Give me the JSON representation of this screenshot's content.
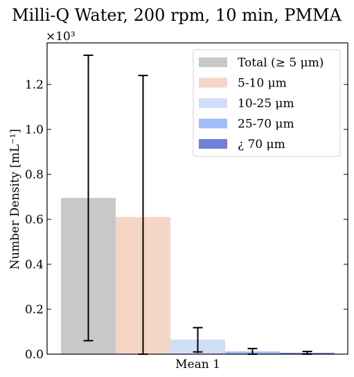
{
  "chart_data": {
    "type": "bar",
    "title": "Milli-Q Water, 200 rpm, 10 min, PMMA",
    "ylabel": "Number Density [mL⁻¹]",
    "xlabel": "",
    "y_multiplier": "×10³",
    "categories": [
      "Mean 1"
    ],
    "ylim": [
      0,
      1.385
    ],
    "yticks": [
      "0.0",
      "0.2",
      "0.4",
      "0.6",
      "0.8",
      "1.0",
      "1.2"
    ],
    "grid": false,
    "legend_position": "top-right",
    "series": [
      {
        "name": "Total (≥ 5 μm)",
        "value": 0.695,
        "err_low": 0.06,
        "err_high": 1.33,
        "color": "#c8c8c8"
      },
      {
        "name": "5-10 μm",
        "value": 0.61,
        "err_low": 0.0,
        "err_high": 1.24,
        "color": "#f5d6c6"
      },
      {
        "name": "10-25 μm",
        "value": 0.065,
        "err_low": 0.01,
        "err_high": 0.118,
        "color": "#d0ddf6"
      },
      {
        "name": "25-70 μm",
        "value": 0.012,
        "err_low": 0.0,
        "err_high": 0.025,
        "color": "#a3bbf8"
      },
      {
        "name": "¿ 70 μm",
        "value": 0.006,
        "err_low": 0.0,
        "err_high": 0.012,
        "color": "#7080d6"
      }
    ]
  }
}
